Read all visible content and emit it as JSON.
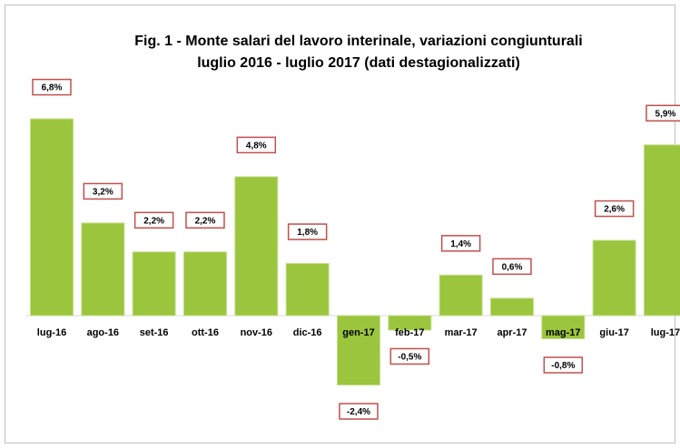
{
  "chart_data": {
    "type": "bar",
    "title": "Fig. 1 - Monte  salari del lavoro interinale, variazioni congiunturali",
    "subtitle": "luglio 2016 - luglio 2017 (dati destagionalizzati)",
    "categories": [
      "lug-16",
      "ago-16",
      "set-16",
      "ott-16",
      "nov-16",
      "dic-16",
      "gen-17",
      "feb-17",
      "mar-17",
      "apr-17",
      "mag-17",
      "giu-17",
      "lug-17"
    ],
    "values": [
      6.8,
      3.2,
      2.2,
      2.2,
      4.8,
      1.8,
      -2.4,
      -0.5,
      1.4,
      0.6,
      -0.8,
      2.6,
      5.9
    ],
    "value_labels": [
      "6,8%",
      "3,2%",
      "2,2%",
      "2,2%",
      "4,8%",
      "1,8%",
      "-2,4%",
      "-0,5%",
      "1,4%",
      "0,6%",
      "-0,8%",
      "2,6%",
      "5,9%"
    ],
    "color": "#9bc53d"
  }
}
